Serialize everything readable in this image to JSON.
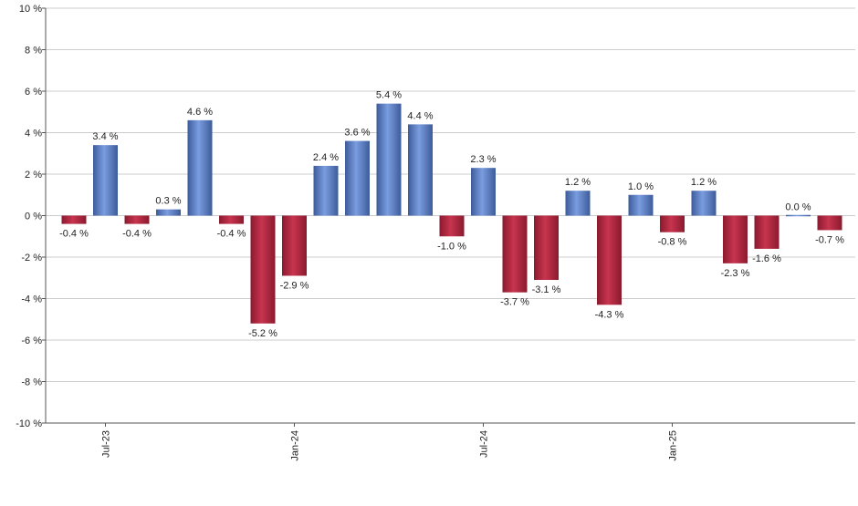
{
  "chart_data": {
    "type": "bar",
    "title": "",
    "xlabel": "",
    "ylabel": "",
    "ylim": [
      -10,
      10
    ],
    "ytick_values": [
      10,
      8,
      6,
      4,
      2,
      0,
      -2,
      -4,
      -6,
      -8,
      -10
    ],
    "ytick_labels": [
      "10 %",
      "8 %",
      "6 %",
      "4 %",
      "2 %",
      "0 %",
      "-2 %",
      "-4 %",
      "-6 %",
      "-8 %",
      "-10 %"
    ],
    "grid": true,
    "legend": "none",
    "categories": [
      "2023-06",
      "2023-07",
      "2023-08",
      "2023-09",
      "2023-10",
      "2023-11",
      "2023-12",
      "2024-01",
      "2024-02",
      "2024-03",
      "2024-04",
      "2024-05",
      "2024-06",
      "2024-07",
      "2024-08",
      "2024-09",
      "2024-10",
      "2024-11",
      "2024-12",
      "2025-01",
      "2025-02",
      "2025-03",
      "2025-04",
      "2025-05",
      "2025-06"
    ],
    "values": [
      -0.4,
      3.4,
      -0.4,
      0.3,
      4.6,
      -0.4,
      -5.2,
      -2.9,
      2.4,
      3.6,
      5.4,
      4.4,
      -1.0,
      2.3,
      -3.7,
      -3.1,
      1.2,
      -4.3,
      1.0,
      -0.8,
      1.2,
      -2.3,
      -1.6,
      0.0,
      -0.7
    ],
    "value_labels": [
      "-0.4 %",
      "3.4 %",
      "-0.4 %",
      "0.3 %",
      "4.6 %",
      "-0.4 %",
      "-5.2 %",
      "-2.9 %",
      "2.4 %",
      "3.6 %",
      "5.4 %",
      "4.4 %",
      "-1.0 %",
      "2.3 %",
      "-3.7 %",
      "-3.1 %",
      "1.2 %",
      "-4.3 %",
      "1.0 %",
      "-0.8 %",
      "1.2 %",
      "-2.3 %",
      "-1.6 %",
      "0.0 %",
      "-0.7 %"
    ],
    "xticks": [
      {
        "category": "2023-07",
        "label": "Jul-23"
      },
      {
        "category": "2024-01",
        "label": "Jan-24"
      },
      {
        "category": "2024-07",
        "label": "Jul-24"
      },
      {
        "category": "2025-01",
        "label": "Jan-25"
      }
    ],
    "colors": {
      "positive": "#7a9de0",
      "positive_dark": "#3d5b9a",
      "negative": "#c8344e",
      "negative_dark": "#8a1a2f",
      "grid": "#cccccc",
      "axis": "#555555"
    }
  }
}
